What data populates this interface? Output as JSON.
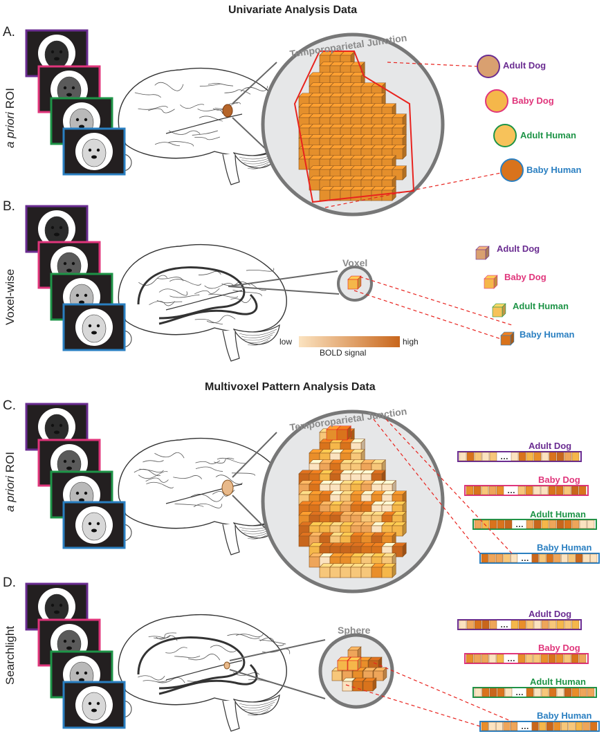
{
  "titles": {
    "univariate": "Univariate Analysis Data",
    "mvpa": "Multivoxel Pattern Analysis Data"
  },
  "panels": [
    {
      "letter": "A.",
      "side_label_main": "ROI",
      "side_label_italic": "a priori",
      "region": "Temporoparietal Junction"
    },
    {
      "letter": "B.",
      "side_label_main": "Voxel-wise",
      "side_label_italic": "",
      "region": "Voxel"
    },
    {
      "letter": "C.",
      "side_label_main": "ROI",
      "side_label_italic": "a priori",
      "region": "Temporoparietal Junction"
    },
    {
      "letter": "D.",
      "side_label_main": "Searchlight",
      "side_label_italic": "",
      "region": "Sphere"
    }
  ],
  "conditions": [
    {
      "name": "Adult Dog",
      "color": "#6a2c91",
      "fill": "#d9a070"
    },
    {
      "name": "Baby Dog",
      "color": "#e0357b",
      "fill": "#f5b74a"
    },
    {
      "name": "Adult Human",
      "color": "#1e9447",
      "fill": "#f7c25a"
    },
    {
      "name": "Baby Human",
      "color": "#2a7fc1",
      "fill": "#d9731c"
    }
  ],
  "stimuli": [
    "adult-dog-photo",
    "baby-dog-photo",
    "adult-human-photo",
    "baby-human-photo"
  ],
  "colorbar": {
    "low": "low",
    "high": "high",
    "label": "BOLD signal",
    "color_low": "#fbe3c0",
    "color_high": "#c8661c"
  },
  "highlight_color": "#e8231e"
}
